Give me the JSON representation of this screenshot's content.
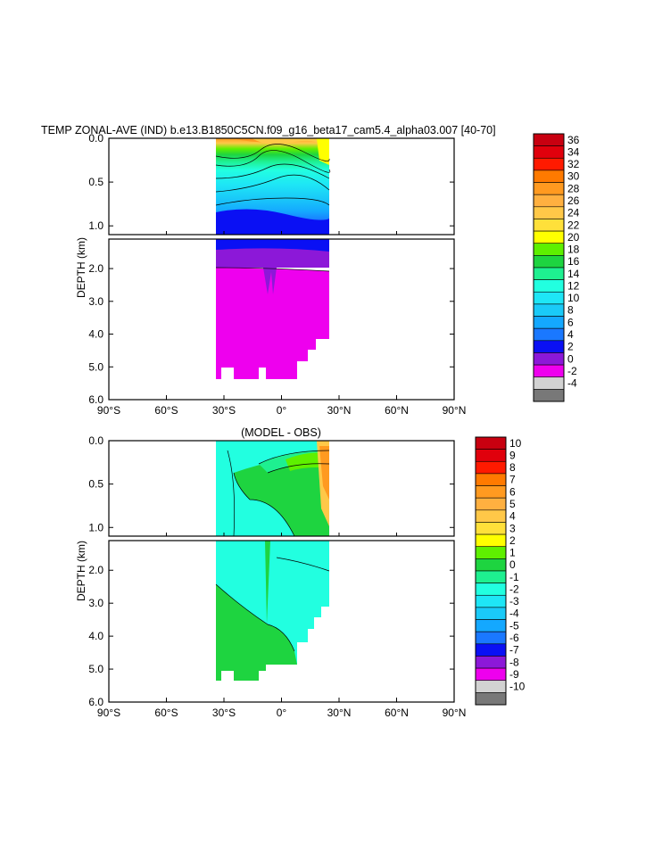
{
  "chart_data": [
    {
      "type": "heatmap",
      "title": "TEMP ZONAL-AVE (IND) b.e13.B1850C5CN.f09_g16_beta17_cam5.4_alpha03.007 [40-70]",
      "xlabel": "",
      "ylabel": "DEPTH (km)",
      "x_ticks": [
        "90°S",
        "60°S",
        "30°S",
        "0°",
        "30°N",
        "60°N",
        "90°N"
      ],
      "x_tick_values": [
        -90,
        -60,
        -30,
        0,
        30,
        60,
        90
      ],
      "y_ticks_upper": [
        "0.0",
        "0.5",
        "1.0"
      ],
      "y_ticks_upper_values": [
        0.0,
        0.5,
        1.0
      ],
      "y_ticks_lower": [
        "2.0",
        "3.0",
        "4.0",
        "5.0",
        "6.0"
      ],
      "y_ticks_lower_values": [
        2.0,
        3.0,
        4.0,
        5.0,
        6.0
      ],
      "xlim": [
        -90,
        90
      ],
      "ylim_upper": [
        0.0,
        1.1
      ],
      "ylim_lower": [
        1.1,
        6.0
      ],
      "data_lat_range": [
        -34,
        25
      ],
      "colorbar": {
        "labels": [
          "36",
          "34",
          "32",
          "30",
          "28",
          "26",
          "24",
          "22",
          "20",
          "18",
          "16",
          "14",
          "12",
          "10",
          "8",
          "6",
          "4",
          "2",
          "0",
          "-2",
          "-4"
        ],
        "colors": [
          "#c80010",
          "#e0000c",
          "#ff1a00",
          "#ff7a00",
          "#ff9a20",
          "#ffb040",
          "#ffc848",
          "#ffe03a",
          "#ffff00",
          "#5ef000",
          "#1ed440",
          "#1ef090",
          "#22ffe0",
          "#1ee6f6",
          "#1acaf8",
          "#14a8ff",
          "#1a78ff",
          "#0a10f4",
          "#8c18d8",
          "#ee00ee",
          "#d2d2d2",
          "#787878"
        ]
      }
    },
    {
      "type": "heatmap",
      "title": "(MODEL - OBS)",
      "xlabel": "",
      "ylabel": "DEPTH (km)",
      "x_ticks": [
        "90°S",
        "60°S",
        "30°S",
        "0°",
        "30°N",
        "60°N",
        "90°N"
      ],
      "x_tick_values": [
        -90,
        -60,
        -30,
        0,
        30,
        60,
        90
      ],
      "y_ticks_upper": [
        "0.0",
        "0.5",
        "1.0"
      ],
      "y_ticks_upper_values": [
        0.0,
        0.5,
        1.0
      ],
      "y_ticks_lower": [
        "2.0",
        "3.0",
        "4.0",
        "5.0",
        "6.0"
      ],
      "y_ticks_lower_values": [
        2.0,
        3.0,
        4.0,
        5.0,
        6.0
      ],
      "xlim": [
        -90,
        90
      ],
      "ylim_upper": [
        0.0,
        1.1
      ],
      "ylim_lower": [
        1.1,
        6.0
      ],
      "data_lat_range": [
        -34,
        25
      ],
      "colorbar": {
        "labels": [
          "10",
          "9",
          "8",
          "7",
          "6",
          "5",
          "4",
          "3",
          "2",
          "1",
          "0",
          "-1",
          "-2",
          "-3",
          "-4",
          "-5",
          "-6",
          "-7",
          "-8",
          "-9",
          "-10"
        ],
        "colors": [
          "#c80010",
          "#e0000c",
          "#ff1a00",
          "#ff7a00",
          "#ff9a20",
          "#ffb040",
          "#ffc848",
          "#ffe03a",
          "#ffff00",
          "#5ef000",
          "#1ed440",
          "#1ef090",
          "#22ffe0",
          "#1ee6f6",
          "#1acaf8",
          "#14a8ff",
          "#1a78ff",
          "#0a10f4",
          "#8c18d8",
          "#ee00ee",
          "#d2d2d2",
          "#787878"
        ]
      }
    }
  ]
}
